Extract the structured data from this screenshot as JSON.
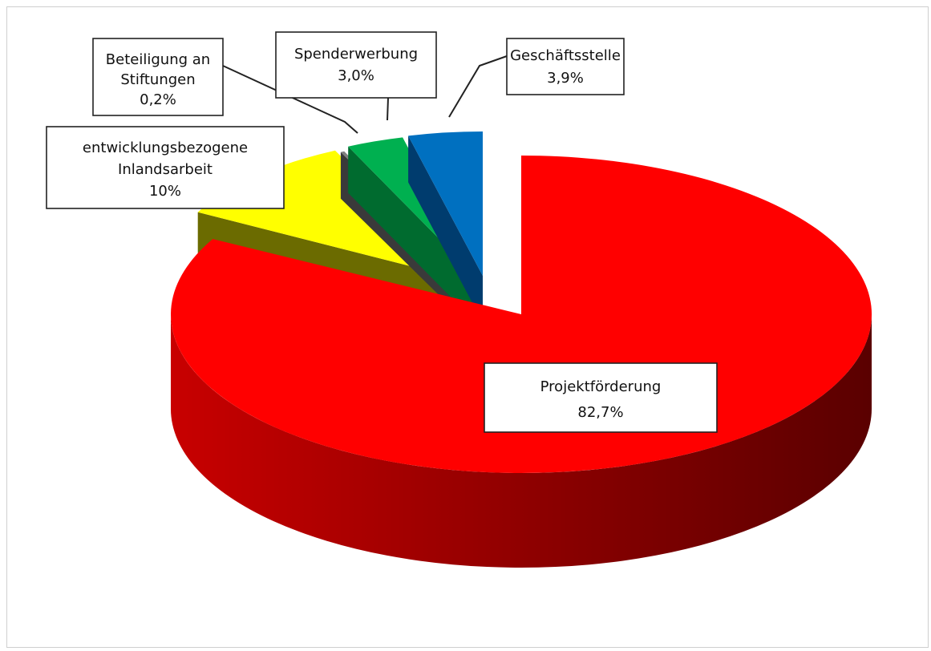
{
  "chart_data": {
    "type": "pie",
    "title": "",
    "slices": [
      {
        "name": "Projektförderung",
        "label": "82,7%",
        "value": 82.7,
        "color": "#ff0000"
      },
      {
        "name": "entwicklungsbezogene Inlandsarbeit",
        "label": "10%",
        "value": 10.0,
        "color": "#ffff00"
      },
      {
        "name": "Beteiligung an Stiftungen",
        "label": "0,2%",
        "value": 0.2,
        "color": "#808080"
      },
      {
        "name": "Spenderwerbung",
        "label": "3,0%",
        "value": 3.0,
        "color": "#00b050"
      },
      {
        "name": "Geschäftsstelle",
        "label": "3,9%",
        "value": 3.9,
        "color": "#0070c0"
      }
    ]
  },
  "labels": {
    "projekt_line1": "Projektförderung",
    "projekt_line2": "82,7%",
    "inland_line1": "entwicklungsbezogene",
    "inland_line2": "Inlandsarbeit",
    "inland_line3": "10%",
    "beteiligung_line1": "Beteiligung an",
    "beteiligung_line2": "Stiftungen",
    "beteiligung_line3": "0,2%",
    "spender_line1": "Spenderwerbung",
    "spender_line2": "3,0%",
    "geschaeft_line1": "Geschäftsstelle",
    "geschaeft_line2": "3,9%"
  }
}
